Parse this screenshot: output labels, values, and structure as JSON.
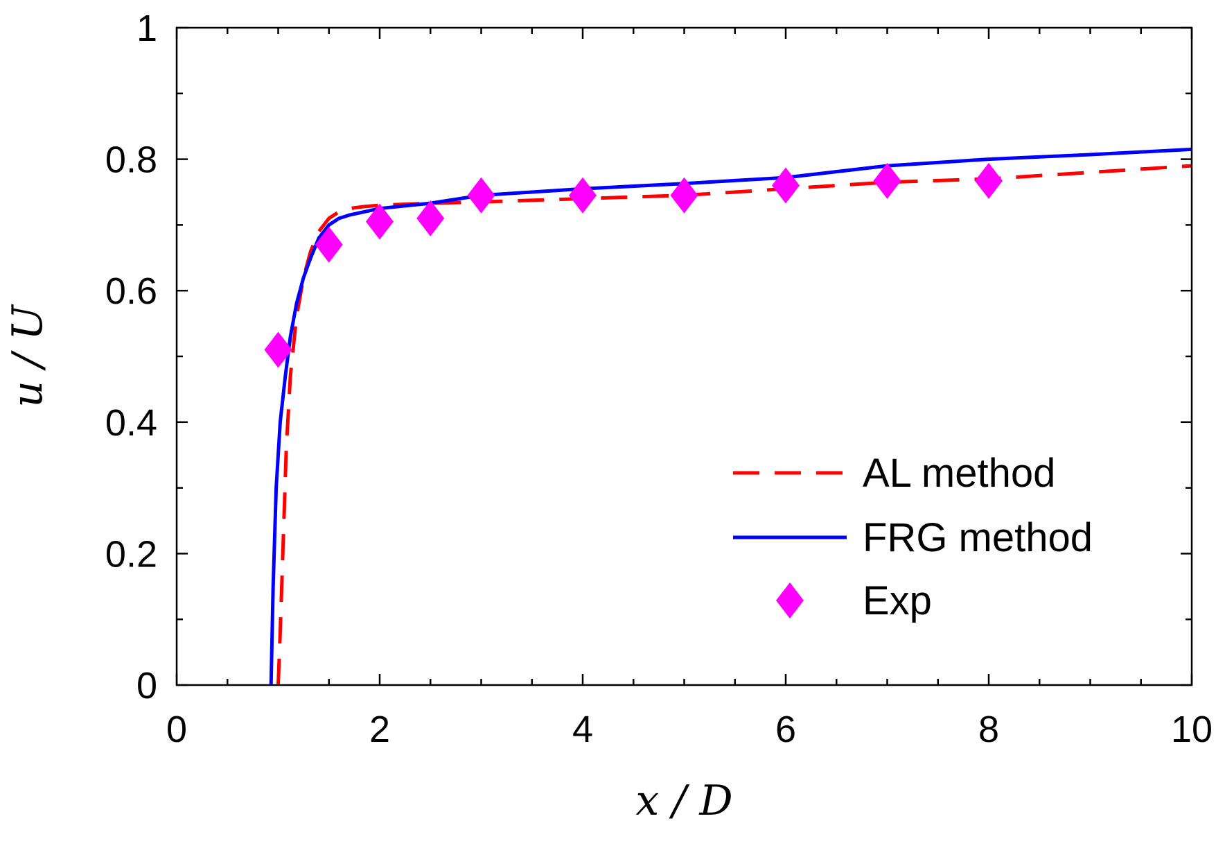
{
  "chart_data": {
    "type": "line",
    "xlabel": "x / D",
    "ylabel": "u / U",
    "xlim": [
      0,
      10
    ],
    "ylim": [
      0,
      1
    ],
    "xticks": [
      0,
      2,
      4,
      6,
      8,
      10
    ],
    "xtick_labels": [
      "0",
      "2",
      "4",
      "6",
      "8",
      "10"
    ],
    "yticks": [
      0,
      0.2,
      0.4,
      0.6,
      0.8,
      1
    ],
    "ytick_labels": [
      "0",
      "0.2",
      "0.4",
      "0.6",
      "0.8",
      "1"
    ],
    "x_minor_step": 0.5,
    "y_minor_step": 0.1,
    "grid": false,
    "legend_position": "bottom-right",
    "series": [
      {
        "name": "AL method",
        "style": "dashed",
        "color": "#ff0000",
        "x": [
          1.0,
          1.02,
          1.05,
          1.08,
          1.12,
          1.18,
          1.25,
          1.32,
          1.4,
          1.5,
          1.6,
          1.7,
          1.85,
          2.0,
          2.5,
          3.0,
          4.0,
          5.0,
          6.0,
          7.0,
          8.0,
          9.0,
          10.0
        ],
        "y": [
          0.0,
          0.08,
          0.22,
          0.36,
          0.47,
          0.56,
          0.62,
          0.66,
          0.69,
          0.71,
          0.72,
          0.725,
          0.728,
          0.73,
          0.733,
          0.735,
          0.74,
          0.745,
          0.755,
          0.765,
          0.77,
          0.78,
          0.79
        ]
      },
      {
        "name": "FRG method",
        "style": "solid",
        "color": "#0000ff",
        "x": [
          0.93,
          0.95,
          0.98,
          1.02,
          1.07,
          1.12,
          1.18,
          1.25,
          1.32,
          1.4,
          1.5,
          1.6,
          1.7,
          1.85,
          2.0,
          2.5,
          3.0,
          4.0,
          5.0,
          6.0,
          7.0,
          8.0,
          9.0,
          10.0
        ],
        "y": [
          0.0,
          0.15,
          0.3,
          0.4,
          0.47,
          0.53,
          0.58,
          0.62,
          0.65,
          0.68,
          0.7,
          0.71,
          0.715,
          0.72,
          0.725,
          0.733,
          0.745,
          0.755,
          0.763,
          0.772,
          0.79,
          0.8,
          0.807,
          0.815
        ]
      },
      {
        "name": "Exp",
        "style": "markers",
        "marker": "diamond",
        "color": "#ff00ff",
        "x": [
          1.0,
          1.5,
          2.0,
          2.5,
          3.0,
          4.0,
          5.0,
          6.0,
          7.0,
          8.0
        ],
        "y": [
          0.51,
          0.67,
          0.705,
          0.71,
          0.745,
          0.745,
          0.745,
          0.76,
          0.767,
          0.767
        ]
      }
    ]
  }
}
